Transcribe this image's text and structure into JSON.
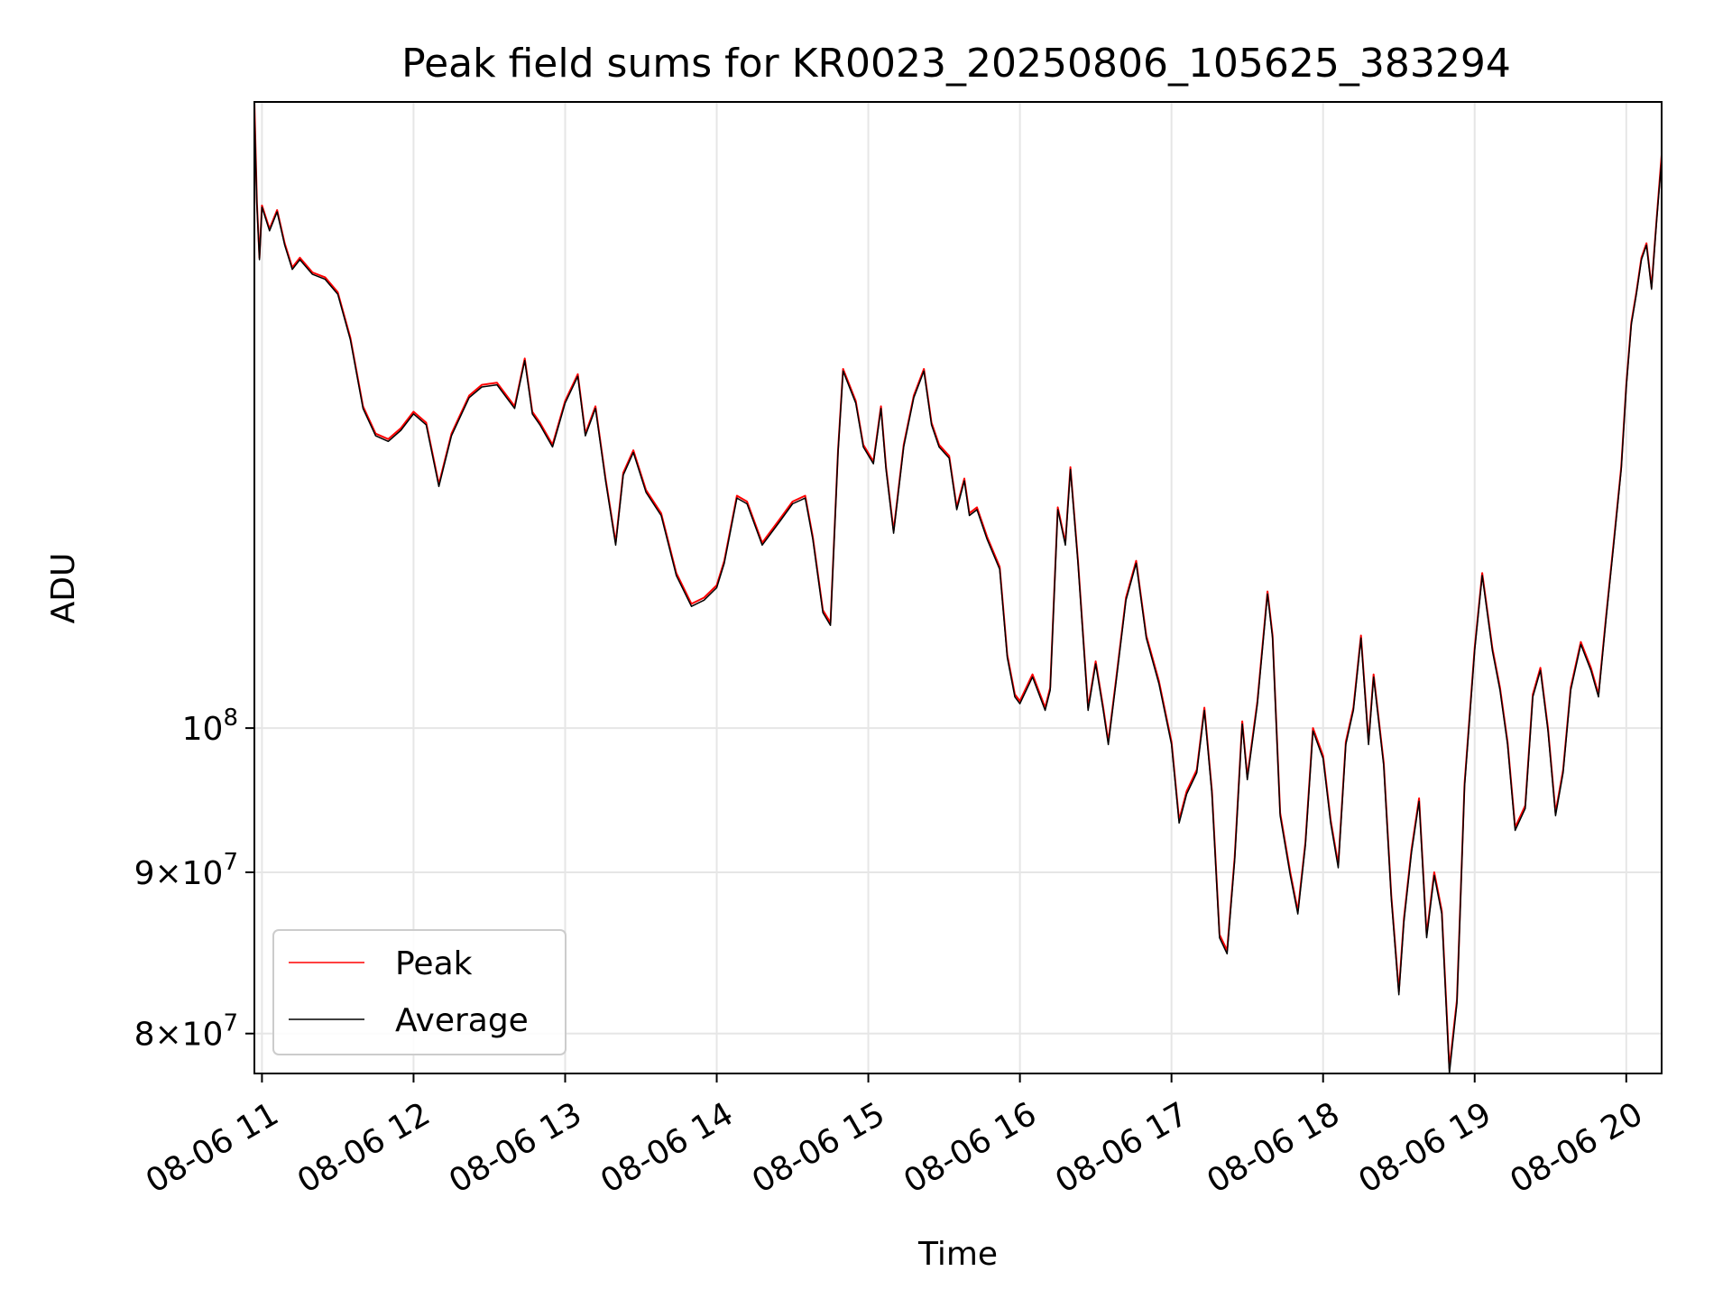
{
  "chart_data": {
    "type": "line",
    "title": "Peak field sums for KR0023_20250806_105625_383294",
    "xlabel": "Time",
    "ylabel": "ADU",
    "xlim": [
      "2025-08-06 10:57",
      "2025-08-06 20:14"
    ],
    "ylim": [
      77700000,
      158000000
    ],
    "yscale": "log",
    "grid": true,
    "legend_position": "lower-left",
    "x_ticks": [
      {
        "t": "2025-08-06 11:00",
        "label": "08-06 11"
      },
      {
        "t": "2025-08-06 12:00",
        "label": "08-06 12"
      },
      {
        "t": "2025-08-06 13:00",
        "label": "08-06 13"
      },
      {
        "t": "2025-08-06 14:00",
        "label": "08-06 14"
      },
      {
        "t": "2025-08-06 15:00",
        "label": "08-06 15"
      },
      {
        "t": "2025-08-06 16:00",
        "label": "08-06 16"
      },
      {
        "t": "2025-08-06 17:00",
        "label": "08-06 17"
      },
      {
        "t": "2025-08-06 18:00",
        "label": "08-06 18"
      },
      {
        "t": "2025-08-06 19:00",
        "label": "08-06 19"
      },
      {
        "t": "2025-08-06 20:00",
        "label": "08-06 20"
      }
    ],
    "y_ticks": [
      {
        "value": 100000000,
        "mantissa": "",
        "exponent": "8"
      },
      {
        "value": 90000000,
        "mantissa": "9",
        "exponent": "7"
      },
      {
        "value": 80000000,
        "mantissa": "8",
        "exponent": "7"
      }
    ],
    "x": [
      "2025-08-06 10:57",
      "2025-08-06 10:58",
      "2025-08-06 10:59",
      "2025-08-06 11:00",
      "2025-08-06 11:03",
      "2025-08-06 11:06",
      "2025-08-06 11:09",
      "2025-08-06 11:12",
      "2025-08-06 11:15",
      "2025-08-06 11:20",
      "2025-08-06 11:25",
      "2025-08-06 11:30",
      "2025-08-06 11:35",
      "2025-08-06 11:40",
      "2025-08-06 11:45",
      "2025-08-06 11:50",
      "2025-08-06 11:55",
      "2025-08-06 12:00",
      "2025-08-06 12:05",
      "2025-08-06 12:10",
      "2025-08-06 12:15",
      "2025-08-06 12:18",
      "2025-08-06 12:22",
      "2025-08-06 12:27",
      "2025-08-06 12:33",
      "2025-08-06 12:40",
      "2025-08-06 12:44",
      "2025-08-06 12:47",
      "2025-08-06 12:50",
      "2025-08-06 12:55",
      "2025-08-06 13:00",
      "2025-08-06 13:05",
      "2025-08-06 13:08",
      "2025-08-06 13:12",
      "2025-08-06 13:16",
      "2025-08-06 13:20",
      "2025-08-06 13:23",
      "2025-08-06 13:27",
      "2025-08-06 13:32",
      "2025-08-06 13:38",
      "2025-08-06 13:44",
      "2025-08-06 13:50",
      "2025-08-06 13:55",
      "2025-08-06 14:00",
      "2025-08-06 14:03",
      "2025-08-06 14:08",
      "2025-08-06 14:12",
      "2025-08-06 14:18",
      "2025-08-06 14:25",
      "2025-08-06 14:30",
      "2025-08-06 14:35",
      "2025-08-06 14:38",
      "2025-08-06 14:42",
      "2025-08-06 14:45",
      "2025-08-06 14:48",
      "2025-08-06 14:50",
      "2025-08-06 14:55",
      "2025-08-06 14:58",
      "2025-08-06 15:02",
      "2025-08-06 15:05",
      "2025-08-06 15:07",
      "2025-08-06 15:10",
      "2025-08-06 15:14",
      "2025-08-06 15:18",
      "2025-08-06 15:22",
      "2025-08-06 15:25",
      "2025-08-06 15:28",
      "2025-08-06 15:32",
      "2025-08-06 15:35",
      "2025-08-06 15:38",
      "2025-08-06 15:40",
      "2025-08-06 15:43",
      "2025-08-06 15:47",
      "2025-08-06 15:52",
      "2025-08-06 15:55",
      "2025-08-06 15:58",
      "2025-08-06 16:00",
      "2025-08-06 16:05",
      "2025-08-06 16:10",
      "2025-08-06 16:12",
      "2025-08-06 16:15",
      "2025-08-06 16:18",
      "2025-08-06 16:20",
      "2025-08-06 16:23",
      "2025-08-06 16:27",
      "2025-08-06 16:30",
      "2025-08-06 16:33",
      "2025-08-06 16:35",
      "2025-08-06 16:38",
      "2025-08-06 16:42",
      "2025-08-06 16:46",
      "2025-08-06 16:50",
      "2025-08-06 16:55",
      "2025-08-06 17:00",
      "2025-08-06 17:03",
      "2025-08-06 17:06",
      "2025-08-06 17:10",
      "2025-08-06 17:13",
      "2025-08-06 17:16",
      "2025-08-06 17:19",
      "2025-08-06 17:22",
      "2025-08-06 17:25",
      "2025-08-06 17:28",
      "2025-08-06 17:30",
      "2025-08-06 17:34",
      "2025-08-06 17:38",
      "2025-08-06 17:40",
      "2025-08-06 17:43",
      "2025-08-06 17:47",
      "2025-08-06 17:50",
      "2025-08-06 17:53",
      "2025-08-06 17:56",
      "2025-08-06 18:00",
      "2025-08-06 18:03",
      "2025-08-06 18:06",
      "2025-08-06 18:09",
      "2025-08-06 18:12",
      "2025-08-06 18:15",
      "2025-08-06 18:18",
      "2025-08-06 18:20",
      "2025-08-06 18:24",
      "2025-08-06 18:27",
      "2025-08-06 18:30",
      "2025-08-06 18:32",
      "2025-08-06 18:35",
      "2025-08-06 18:38",
      "2025-08-06 18:41",
      "2025-08-06 18:44",
      "2025-08-06 18:47",
      "2025-08-06 18:50",
      "2025-08-06 18:53",
      "2025-08-06 18:56",
      "2025-08-06 19:00",
      "2025-08-06 19:03",
      "2025-08-06 19:07",
      "2025-08-06 19:10",
      "2025-08-06 19:13",
      "2025-08-06 19:16",
      "2025-08-06 19:20",
      "2025-08-06 19:23",
      "2025-08-06 19:26",
      "2025-08-06 19:29",
      "2025-08-06 19:32",
      "2025-08-06 19:35",
      "2025-08-06 19:38",
      "2025-08-06 19:42",
      "2025-08-06 19:46",
      "2025-08-06 19:49",
      "2025-08-06 19:52",
      "2025-08-06 19:55",
      "2025-08-06 19:58",
      "2025-08-06 20:00",
      "2025-08-06 20:02",
      "2025-08-06 20:04",
      "2025-08-06 20:06",
      "2025-08-06 20:08",
      "2025-08-06 20:10",
      "2025-08-06 20:12",
      "2025-08-06 20:14"
    ],
    "series": [
      {
        "name": "Peak",
        "color": "#ff0000",
        "values": [
          158000000,
          146800000,
          141000000,
          146500000,
          144000000,
          146000000,
          142500000,
          140000000,
          141000000,
          139500000,
          139000000,
          137500000,
          133000000,
          126500000,
          124000000,
          123500000,
          124500000,
          126000000,
          125000000,
          119500000,
          124000000,
          125500000,
          127500000,
          128500000,
          128700000,
          126500000,
          131000000,
          126000000,
          125000000,
          123000000,
          127000000,
          129500000,
          124000000,
          126500000,
          120000000,
          114500000,
          120500000,
          122500000,
          119000000,
          117000000,
          112000000,
          109500000,
          110000000,
          111000000,
          113000000,
          118500000,
          118000000,
          114500000,
          116500000,
          118000000,
          118500000,
          115000000,
          109000000,
          108000000,
          122500000,
          130000000,
          127000000,
          123000000,
          121500000,
          126500000,
          121000000,
          115500000,
          123000000,
          127500000,
          130000000,
          125000000,
          123000000,
          122000000,
          117500000,
          120000000,
          117000000,
          117500000,
          115000000,
          112500000,
          105500000,
          102500000,
          102000000,
          104000000,
          101500000,
          103000000,
          117500000,
          114500000,
          121000000,
          113000000,
          101500000,
          105000000,
          101500000,
          99000000,
          103500000,
          110000000,
          113000000,
          107000000,
          103500000,
          99000000,
          93500000,
          95500000,
          97000000,
          101500000,
          95500000,
          86000000,
          85000000,
          91000000,
          100500000,
          96500000,
          102000000,
          110500000,
          107000000,
          94000000,
          90000000,
          87500000,
          92000000,
          100000000,
          98000000,
          93500000,
          90500000,
          99000000,
          101500000,
          107000000,
          99000000,
          104000000,
          97500000,
          88500000,
          82500000,
          87000000,
          91500000,
          95000000,
          86000000,
          90000000,
          87500000,
          78000000,
          82000000,
          96000000,
          106000000,
          112000000,
          106000000,
          103000000,
          99000000,
          93000000,
          94500000,
          102500000,
          104500000,
          100000000,
          94000000,
          97000000,
          103000000,
          106500000,
          104500000,
          102500000,
          108500000,
          114500000,
          121000000,
          128500000,
          134500000,
          137500000,
          141000000,
          142500000,
          138000000,
          145000000,
          152000000
        ]
      },
      {
        "name": "Average",
        "color": "#000000",
        "values": [
          157000000,
          146500000,
          140800000,
          146300000,
          143800000,
          145800000,
          142300000,
          139800000,
          140800000,
          139300000,
          138800000,
          137300000,
          132800000,
          126300000,
          123800000,
          123300000,
          124300000,
          125800000,
          124800000,
          119300000,
          123800000,
          125300000,
          127300000,
          128300000,
          128500000,
          126300000,
          130800000,
          125800000,
          124800000,
          122800000,
          126800000,
          129300000,
          123800000,
          126300000,
          119800000,
          114300000,
          120300000,
          122300000,
          118800000,
          116800000,
          111800000,
          109300000,
          109800000,
          110800000,
          112800000,
          118300000,
          117800000,
          114300000,
          116300000,
          117800000,
          118300000,
          114800000,
          108800000,
          107800000,
          122300000,
          129800000,
          126800000,
          122800000,
          121300000,
          126300000,
          120800000,
          115300000,
          122800000,
          127300000,
          129800000,
          124800000,
          122800000,
          121800000,
          117300000,
          119800000,
          116800000,
          117300000,
          114800000,
          112300000,
          105300000,
          102300000,
          101800000,
          103800000,
          101300000,
          102800000,
          117300000,
          114300000,
          120800000,
          112800000,
          101300000,
          104800000,
          101300000,
          98800000,
          103300000,
          109800000,
          112800000,
          106800000,
          103300000,
          98800000,
          93300000,
          95300000,
          96800000,
          101300000,
          95300000,
          85800000,
          84800000,
          90800000,
          100300000,
          96300000,
          101800000,
          110300000,
          106800000,
          93800000,
          89800000,
          87300000,
          91800000,
          99800000,
          97800000,
          93300000,
          90300000,
          98800000,
          101300000,
          106800000,
          98800000,
          103800000,
          97300000,
          88300000,
          82300000,
          86800000,
          91300000,
          94800000,
          85800000,
          89800000,
          87300000,
          77700000,
          81800000,
          95800000,
          105800000,
          111800000,
          105800000,
          102800000,
          98800000,
          92800000,
          94300000,
          102300000,
          104300000,
          99800000,
          93800000,
          96800000,
          102800000,
          106300000,
          104300000,
          102300000,
          108300000,
          114300000,
          120800000,
          128300000,
          134300000,
          137300000,
          140800000,
          142300000,
          137800000,
          144800000,
          151500000
        ]
      }
    ]
  }
}
